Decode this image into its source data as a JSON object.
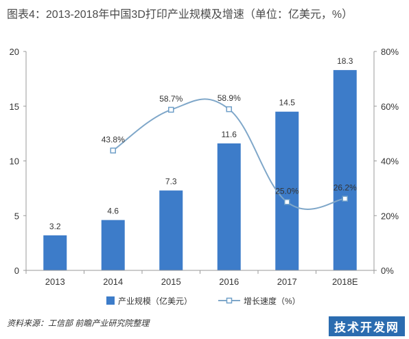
{
  "title": "图表4：2013-2018年中国3D打印产业规模及增速（单位：亿美元，%）",
  "source": "资料来源：工信部 前瞻产业研究院整理",
  "watermark": "技术开发网",
  "colors": {
    "bar": "#3d7cc9",
    "line": "#7fa7c9",
    "marker_fill": "#ffffff",
    "marker_stroke": "#6f9fc8",
    "axis": "#999999"
  },
  "chart_data": {
    "type": "bar",
    "categories": [
      "2013",
      "2014",
      "2015",
      "2016",
      "2017",
      "2018E"
    ],
    "series": [
      {
        "name": "产业规模（亿美元）",
        "type": "bar",
        "axis": "left",
        "values": [
          3.2,
          4.6,
          7.3,
          11.6,
          14.5,
          18.3
        ],
        "labels": [
          "3.2",
          "4.6",
          "7.3",
          "11.6",
          "14.5",
          "18.3"
        ]
      },
      {
        "name": "增长速度（%）",
        "type": "line",
        "axis": "right",
        "values": [
          null,
          43.8,
          58.7,
          58.9,
          25.0,
          26.2
        ],
        "labels": [
          "",
          "43.8%",
          "58.7%",
          "58.9%",
          "25.0%",
          "26.2%"
        ]
      }
    ],
    "y_left": {
      "range": [
        0,
        20
      ],
      "ticks": [
        "0",
        "5",
        "10",
        "15",
        "20"
      ]
    },
    "y_right": {
      "range": [
        0,
        80
      ],
      "ticks": [
        "0%",
        "20%",
        "40%",
        "60%",
        "80%"
      ]
    },
    "legend_position": "bottom",
    "grid": false
  }
}
